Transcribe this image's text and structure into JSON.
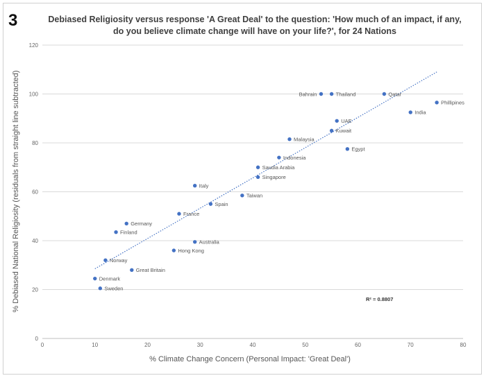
{
  "figure_number": "3",
  "chart_data": {
    "type": "scatter",
    "title": "Debiased Religiosity versus response 'A Great Deal' to the question: 'How much of an impact, if any, do you believe climate change will have on your life?', for 24 Nations",
    "xlabel": "% Climate Change Concern (Personal Impact: 'Great Deal')",
    "ylabel": "% Debiased National Religiosity (residuals from straight line subtracted)",
    "xlim": [
      0,
      80
    ],
    "ylim": [
      0,
      120
    ],
    "x_ticks": [
      0,
      10,
      20,
      30,
      40,
      50,
      60,
      70,
      80
    ],
    "y_ticks": [
      0,
      20,
      40,
      60,
      80,
      100,
      120
    ],
    "grid": "horizontal",
    "legend": "none",
    "marker_color": "#4472c4",
    "trendline": {
      "style": "dotted",
      "color": "#4472c4",
      "x": [
        10,
        75
      ],
      "y": [
        28.5,
        109
      ],
      "r2_label": "R² = 0.8807"
    },
    "points": [
      {
        "name": "Bahrain",
        "x": 53,
        "y": 100,
        "label_side": "left"
      },
      {
        "name": "Thailand",
        "x": 55,
        "y": 100,
        "label_side": "right"
      },
      {
        "name": "Qatar",
        "x": 65,
        "y": 100,
        "label_side": "right"
      },
      {
        "name": "Phillipines",
        "x": 75,
        "y": 96.5,
        "label_side": "right"
      },
      {
        "name": "India",
        "x": 70,
        "y": 92.5,
        "label_side": "right"
      },
      {
        "name": "UAE",
        "x": 56,
        "y": 89,
        "label_side": "right"
      },
      {
        "name": "Kuwait",
        "x": 55,
        "y": 85,
        "label_side": "right"
      },
      {
        "name": "Malaysia",
        "x": 47,
        "y": 81.5,
        "label_side": "right"
      },
      {
        "name": "Egypt",
        "x": 58,
        "y": 77.5,
        "label_side": "right"
      },
      {
        "name": "Indonesia",
        "x": 45,
        "y": 74,
        "label_side": "right"
      },
      {
        "name": "Saudia Arabia",
        "x": 41,
        "y": 70,
        "label_side": "right"
      },
      {
        "name": "Singapore",
        "x": 41,
        "y": 66,
        "label_side": "right"
      },
      {
        "name": "Italy",
        "x": 29,
        "y": 62.5,
        "label_side": "right"
      },
      {
        "name": "Taiwan",
        "x": 38,
        "y": 58.5,
        "label_side": "right"
      },
      {
        "name": "Spain",
        "x": 32,
        "y": 55,
        "label_side": "right"
      },
      {
        "name": "France",
        "x": 26,
        "y": 51,
        "label_side": "right"
      },
      {
        "name": "Germany",
        "x": 16,
        "y": 47,
        "label_side": "right"
      },
      {
        "name": "Finland",
        "x": 14,
        "y": 43.5,
        "label_side": "right"
      },
      {
        "name": "Australia",
        "x": 29,
        "y": 39.5,
        "label_side": "right"
      },
      {
        "name": "Hong Kong",
        "x": 25,
        "y": 36,
        "label_side": "right"
      },
      {
        "name": "Norway",
        "x": 12,
        "y": 32,
        "label_side": "right"
      },
      {
        "name": "Great Britain",
        "x": 17,
        "y": 28,
        "label_side": "right"
      },
      {
        "name": "Denmark",
        "x": 10,
        "y": 24.5,
        "label_side": "right"
      },
      {
        "name": "Sweden",
        "x": 11,
        "y": 20.5,
        "label_side": "right"
      }
    ]
  }
}
